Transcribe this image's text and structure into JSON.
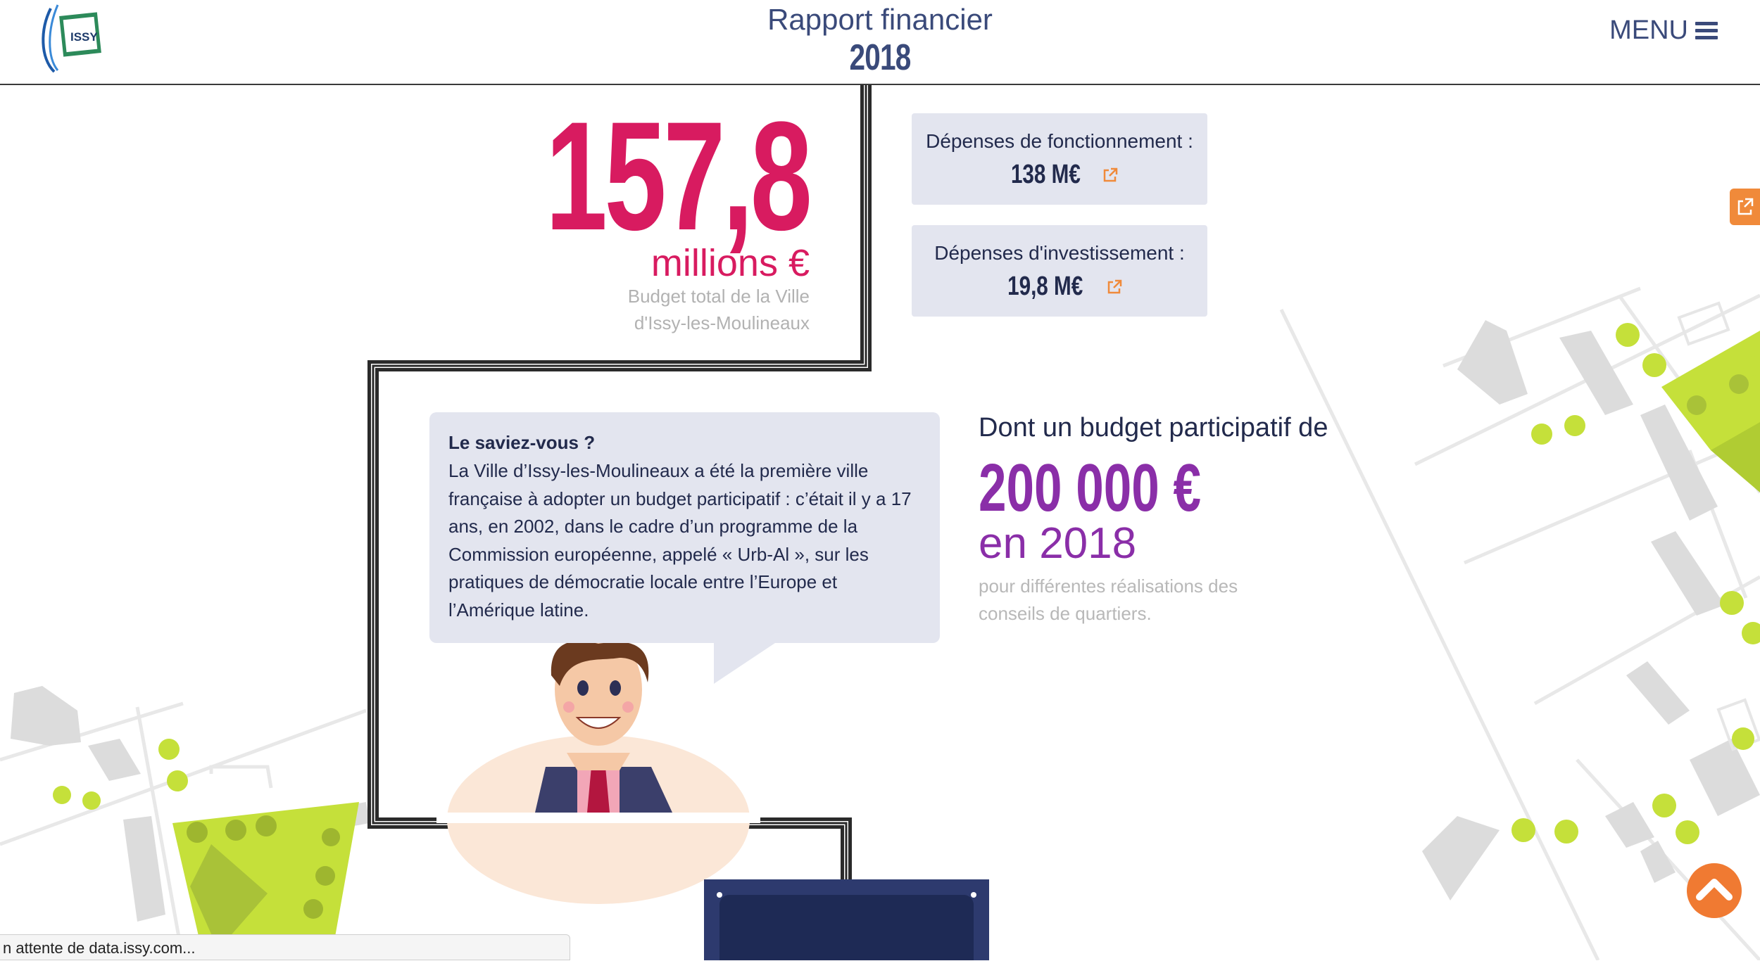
{
  "header": {
    "logo_text": "ISSY",
    "title_line1": "Rapport financier",
    "title_line2": "2018",
    "menu_label": "MENU"
  },
  "budget": {
    "amount": "157,8",
    "unit": "millions €",
    "caption_line1": "Budget total de la Ville",
    "caption_line2": "d'Issy-les-Moulineaux"
  },
  "cards": [
    {
      "label": "Dépenses de fonctionnement :",
      "value": "138 M€"
    },
    {
      "label": "Dépenses d'investissement :",
      "value": "19,8 M€"
    }
  ],
  "bubble": {
    "title": "Le saviez-vous ?",
    "text": "La Ville d’Issy-les-Moulineaux a été la première ville française à adopter un budget participatif : c’était il y a 17 ans, en 2002, dans le cadre d’un programme de la Commission européenne, appelé « Urb-Al », sur les pratiques de démocratie locale entre l’Europe et l’Amérique latine."
  },
  "participatif": {
    "heading": "Dont un budget participatif de",
    "amount": "200 000 €",
    "year": "en 2018",
    "note": "pour différentes réalisations des conseils de quartiers."
  },
  "status_bar": {
    "text": "n attente de data.issy.com..."
  },
  "colors": {
    "accent_pink": "#d81b60",
    "accent_purple": "#8a2ea8",
    "navy": "#2c2f55",
    "orange": "#f07a32",
    "green": "#c5e03a"
  },
  "icons": [
    "external-link-icon",
    "hamburger-icon",
    "chevron-up-icon"
  ]
}
